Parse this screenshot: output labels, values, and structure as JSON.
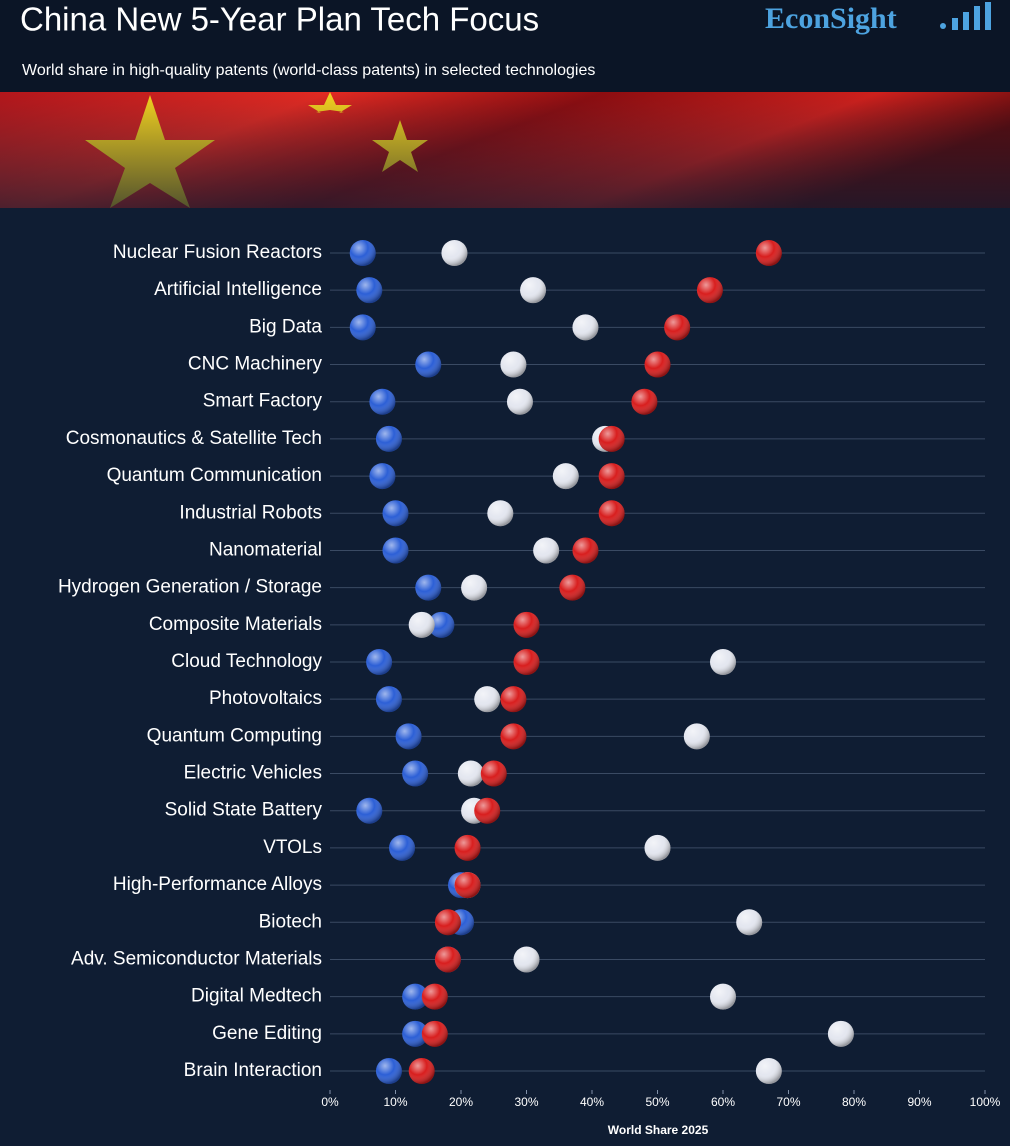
{
  "chart_data": {
    "type": "scatter",
    "title": "China New 5-Year Plan Tech Focus",
    "subtitle": "World share in high-quality patents (world-class patents) in selected technologies",
    "brand": "EconSight",
    "x_label": "World Share 2025",
    "categories": [
      "Nuclear Fusion Reactors",
      "Artificial Intelligence",
      "Big Data",
      "CNC Machinery",
      "Smart Factory",
      "Cosmonautics & Satellite Tech",
      "Quantum Communication",
      "Industrial Robots",
      "Nanomaterial",
      "Hydrogen Generation / Storage",
      "Composite Materials",
      "Cloud Technology",
      "Photovoltaics",
      "Quantum Computing",
      "Electric Vehicles",
      "Solid State Battery",
      "VTOLs",
      "High-Performance Alloys",
      "Biotech",
      "Adv. Semiconductor Materials",
      "Digital Medtech",
      "Gene Editing",
      "Brain Interaction"
    ],
    "series": [
      {
        "color": "#2c5fd6",
        "values": [
          5,
          6,
          5,
          15,
          8,
          9,
          8,
          10,
          10,
          15,
          17,
          7.5,
          9,
          12,
          13,
          6,
          11,
          20,
          20,
          18,
          13,
          13,
          9
        ]
      },
      {
        "color": "#e4e7f0",
        "values": [
          19,
          31,
          39,
          28,
          29,
          42,
          36,
          26,
          33,
          22,
          14,
          60,
          24,
          56,
          21.5,
          22,
          50,
          21,
          64,
          30,
          60,
          78,
          67
        ]
      },
      {
        "color": "#d81e1e",
        "values": [
          67,
          58,
          53,
          50,
          48,
          43,
          43,
          43,
          39,
          37,
          30,
          30,
          28,
          28,
          25,
          24,
          21,
          21,
          18,
          18,
          16,
          16,
          14
        ]
      }
    ],
    "xlim": [
      0,
      100
    ],
    "xticks": [
      {
        "value": 0,
        "label": "0%"
      },
      {
        "value": 10,
        "label": "10%"
      },
      {
        "value": 20,
        "label": "20%"
      },
      {
        "value": 30,
        "label": "30%"
      },
      {
        "value": 40,
        "label": "40%"
      },
      {
        "value": 50,
        "label": "50%"
      },
      {
        "value": 60,
        "label": "60%"
      },
      {
        "value": 70,
        "label": "70%"
      },
      {
        "value": 80,
        "label": "80%"
      },
      {
        "value": 90,
        "label": "90%"
      },
      {
        "value": 100,
        "label": "100%"
      }
    ],
    "grid": true
  }
}
